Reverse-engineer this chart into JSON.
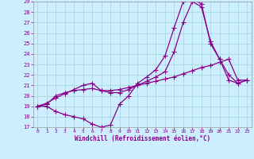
{
  "xlabel": "Windchill (Refroidissement éolien,°C)",
  "bg_color": "#cceeff",
  "line_color": "#880088",
  "xlim": [
    -0.5,
    23.5
  ],
  "ylim": [
    17,
    29
  ],
  "xticks": [
    0,
    1,
    2,
    3,
    4,
    5,
    6,
    7,
    8,
    9,
    10,
    11,
    12,
    13,
    14,
    15,
    16,
    17,
    18,
    19,
    20,
    21,
    22,
    23
  ],
  "yticks": [
    17,
    18,
    19,
    20,
    21,
    22,
    23,
    24,
    25,
    26,
    27,
    28,
    29
  ],
  "line1_x": [
    0,
    1,
    2,
    3,
    4,
    5,
    6,
    7,
    8,
    9,
    10,
    11,
    12,
    13,
    14,
    15,
    16,
    17,
    18,
    19,
    20,
    21,
    22,
    23
  ],
  "line1_y": [
    19.0,
    19.0,
    18.5,
    18.2,
    18.0,
    17.8,
    17.3,
    17.0,
    17.2,
    19.2,
    20.0,
    21.2,
    21.8,
    22.5,
    23.8,
    26.5,
    29.0,
    29.2,
    28.8,
    25.0,
    23.5,
    22.0,
    21.2,
    21.5
  ],
  "line2_x": [
    0,
    1,
    2,
    3,
    4,
    5,
    6,
    7,
    8,
    9,
    10,
    11,
    12,
    13,
    14,
    15,
    16,
    17,
    18,
    19,
    20,
    21,
    22,
    23
  ],
  "line2_y": [
    19.0,
    19.2,
    20.0,
    20.3,
    20.5,
    20.6,
    20.7,
    20.5,
    20.5,
    20.6,
    20.8,
    21.0,
    21.2,
    21.4,
    21.6,
    21.8,
    22.1,
    22.4,
    22.7,
    22.9,
    23.2,
    23.5,
    21.5,
    21.5
  ],
  "line3_x": [
    0,
    1,
    2,
    3,
    4,
    5,
    6,
    7,
    8,
    9,
    10,
    11,
    12,
    13,
    14,
    15,
    16,
    17,
    18,
    19,
    20,
    21,
    22,
    23
  ],
  "line3_y": [
    19.0,
    19.3,
    19.8,
    20.2,
    20.6,
    21.0,
    21.2,
    20.5,
    20.3,
    20.3,
    20.6,
    21.0,
    21.4,
    21.8,
    22.3,
    24.2,
    27.0,
    29.0,
    28.5,
    25.2,
    23.5,
    21.5,
    21.2,
    21.5
  ]
}
